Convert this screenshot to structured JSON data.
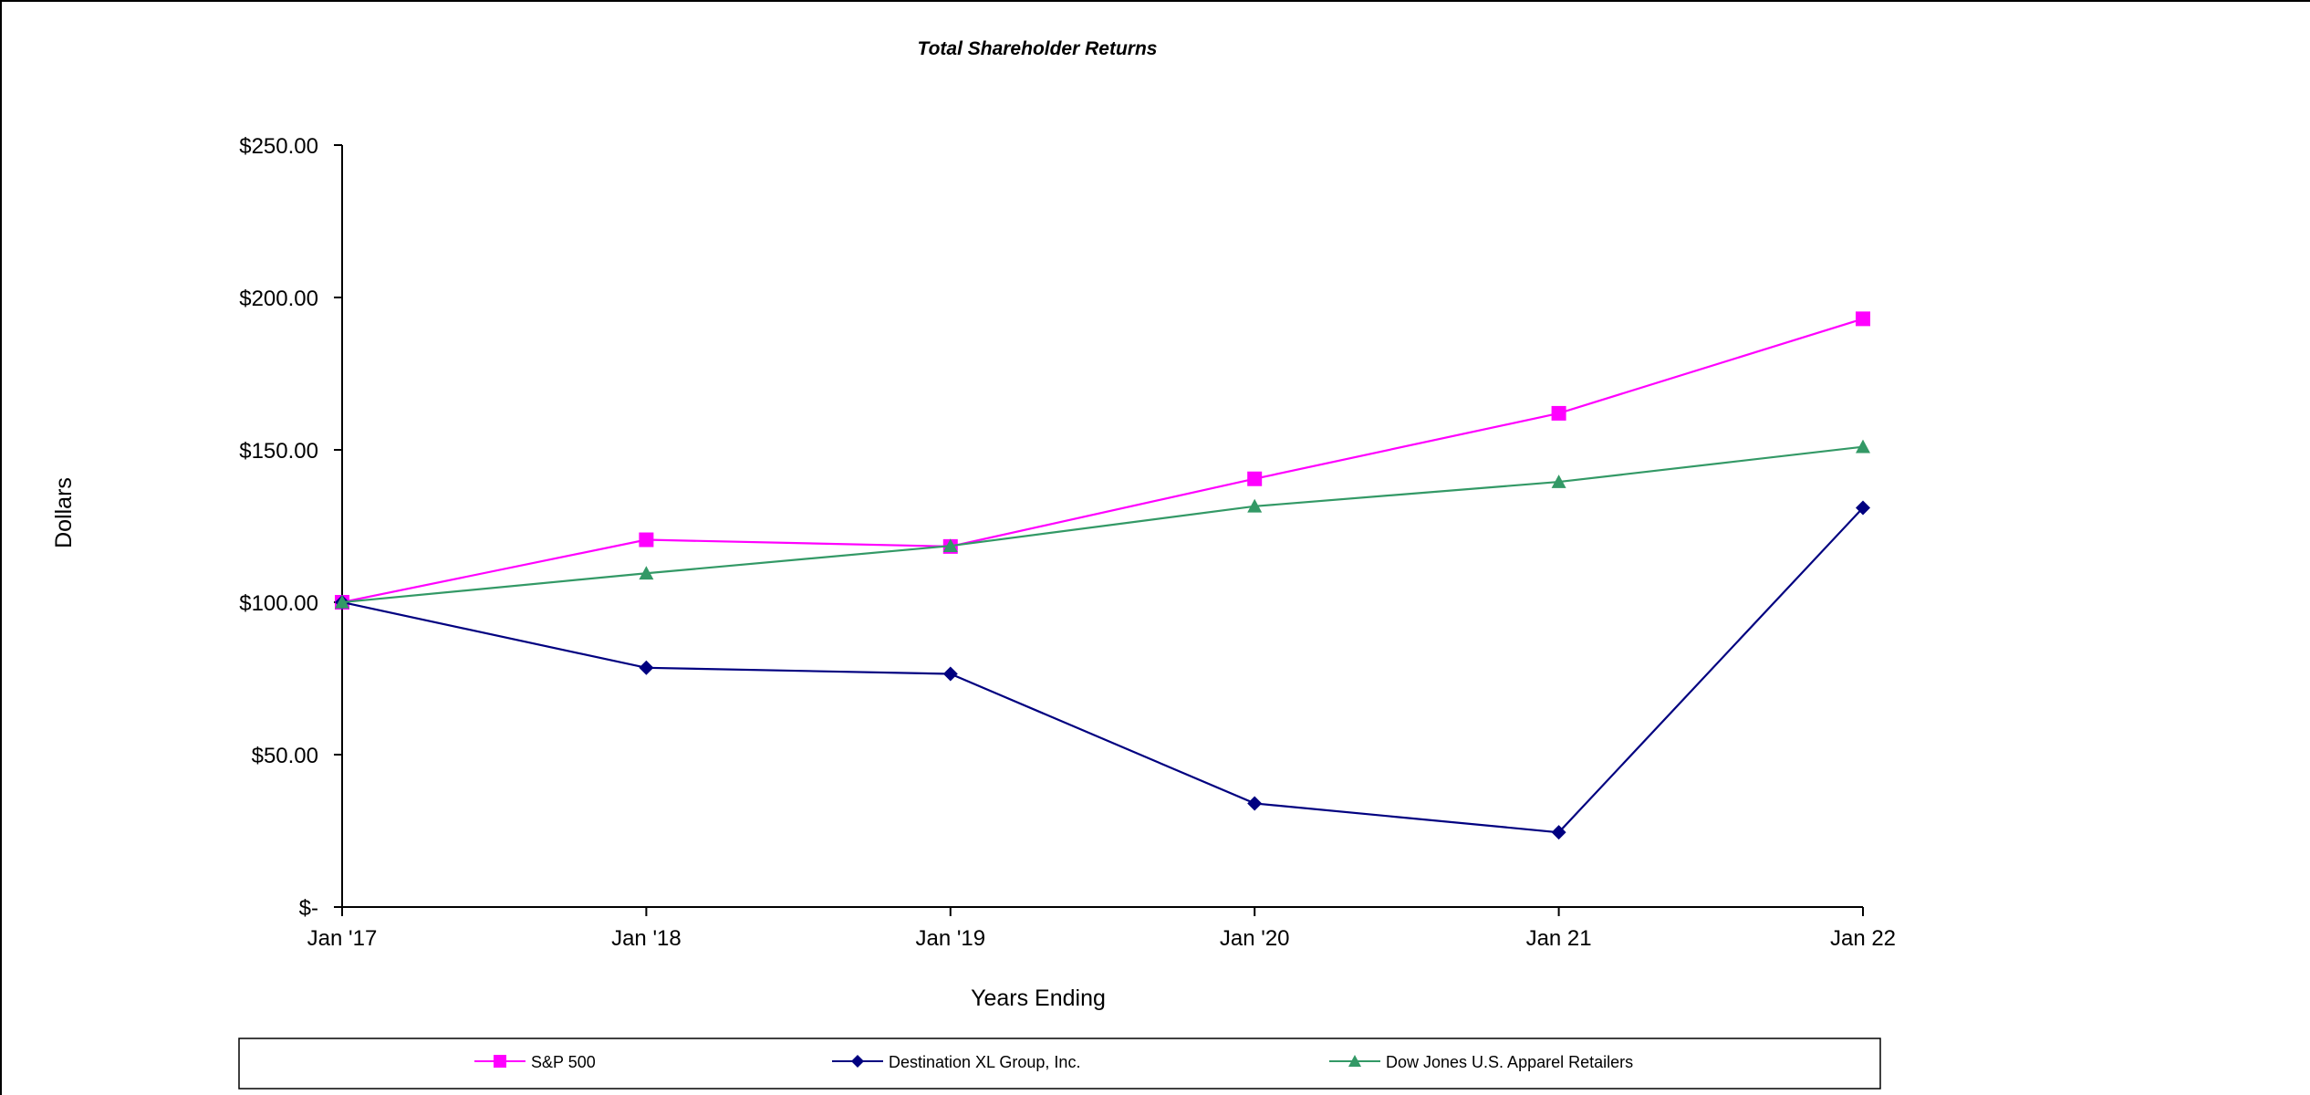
{
  "chart_data": {
    "type": "line",
    "title": "Total Shareholder Returns",
    "xlabel": "Years Ending",
    "ylabel": "Dollars",
    "categories": [
      "Jan '17",
      "Jan '18",
      "Jan '19",
      "Jan '20",
      "Jan 21",
      "Jan 22"
    ],
    "ylim": [
      0,
      250
    ],
    "yticks": [
      0,
      50,
      100,
      150,
      200,
      250
    ],
    "ytick_labels": [
      "$-",
      "$50.00",
      "$100.00",
      "$150.00",
      "$200.00",
      "$250.00"
    ],
    "grid": false,
    "legend_position": "bottom",
    "series": [
      {
        "name": "S&P 500",
        "color": "#ff00ff",
        "marker": "square",
        "values": [
          100,
          120.5,
          118.3,
          140.5,
          162,
          193
        ]
      },
      {
        "name": "Destination XL Group, Inc.",
        "color": "#000080",
        "marker": "diamond",
        "values": [
          100,
          78.5,
          76.5,
          34,
          24.5,
          131
        ]
      },
      {
        "name": "Dow Jones U.S. Apparel Retailers",
        "color": "#339966",
        "marker": "triangle",
        "values": [
          100,
          109.5,
          118.5,
          131.5,
          139.5,
          151
        ]
      }
    ]
  }
}
